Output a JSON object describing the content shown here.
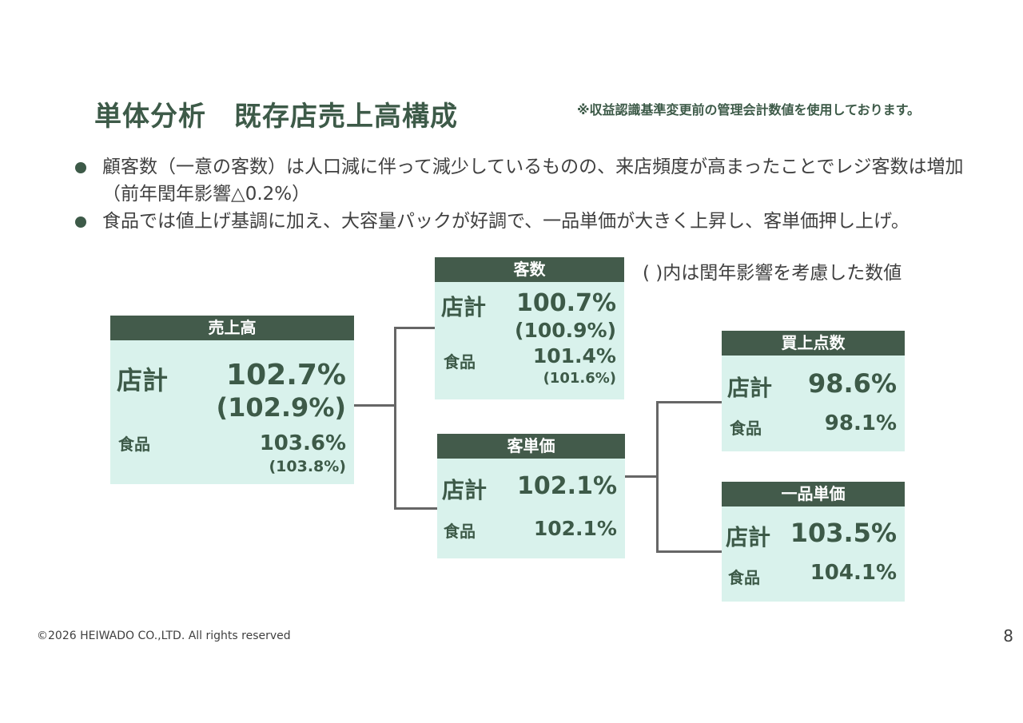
{
  "title": "単体分析　既存店売上高構成",
  "note": "※収益認識基準変更前の管理会計数値を使用しております。",
  "bullets": [
    "顧客数（一意の客数）は人口減に伴って減少しているものの、来店頻度が高まったことでレジ客数は増加（前年閏年影響△0.2%）",
    "食品では値上げ基調に加え、大容量パックが好調で、一品単価が大きく上昇し、客単価押し上げ。"
  ],
  "paren_note": "( )内は閏年影響を考慮した数値",
  "boxes": {
    "sales": {
      "header": "売上高",
      "total_label": "店計",
      "total_value": "102.7%",
      "total_adj": "(102.9%)",
      "food_label": "食品",
      "food_value": "103.6%",
      "food_adj": "(103.8%)"
    },
    "customers": {
      "header": "客数",
      "total_label": "店計",
      "total_value": "100.7%",
      "total_adj": "(100.9%)",
      "food_label": "食品",
      "food_value": "101.4%",
      "food_adj": "(101.6%)"
    },
    "avg_spend": {
      "header": "客単価",
      "total_label": "店計",
      "total_value": "102.1%",
      "food_label": "食品",
      "food_value": "102.1%"
    },
    "items": {
      "header": "買上点数",
      "total_label": "店計",
      "total_value": "98.6%",
      "food_label": "食品",
      "food_value": "98.1%"
    },
    "unit_price": {
      "header": "一品単価",
      "total_label": "店計",
      "total_value": "103.5%",
      "food_label": "食品",
      "food_value": "104.1%"
    }
  },
  "footer": "©2026  HEIWADO CO.,LTD.  All rights reserved",
  "page_number": "8"
}
